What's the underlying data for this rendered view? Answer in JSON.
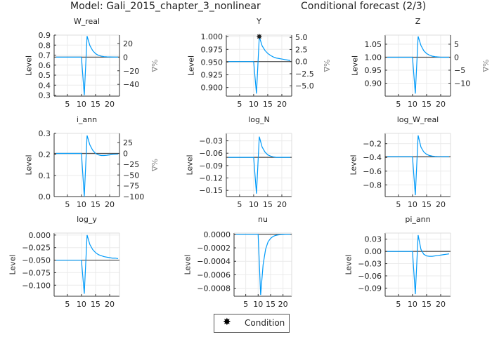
{
  "title_left": "Model: Gali_2015_chapter_3_nonlinear",
  "title_right": "Conditional forecast  (2/3)",
  "legend": {
    "label": "Condition",
    "marker": "star",
    "placement": "bottom-center"
  },
  "colors": {
    "series": "#009af9",
    "steady_state": "#333333",
    "condition": "#000000"
  },
  "chart_data": [
    {
      "type": "line",
      "title": "W_real",
      "ylabel": "Level",
      "y2label": "%Δ",
      "x": [
        1,
        2,
        3,
        4,
        5,
        6,
        7,
        8,
        9,
        10,
        11,
        12,
        13,
        14,
        15,
        16,
        17,
        18,
        19,
        20,
        21,
        22,
        23
      ],
      "xlim": [
        0.3,
        23.5
      ],
      "xticks": [
        5,
        10,
        15,
        20
      ],
      "ylim": [
        0.29,
        0.9
      ],
      "yticks": [
        0.3,
        0.4,
        0.5,
        0.6,
        0.7,
        0.8,
        0.9
      ],
      "ytick_labels": [
        "0.3",
        "0.4",
        "0.5",
        "0.6",
        "0.7",
        "0.8",
        "0.9"
      ],
      "steady_state": 0.68,
      "y2ticks": [
        20,
        0,
        -20,
        -40
      ],
      "y2tick_labels": [
        "20",
        "0",
        "−20",
        "−40"
      ],
      "values": [
        0.68,
        0.68,
        0.68,
        0.68,
        0.68,
        0.68,
        0.68,
        0.68,
        0.68,
        0.68,
        0.3,
        0.89,
        0.795,
        0.745,
        0.715,
        0.698,
        0.69,
        0.685,
        0.683,
        0.682,
        0.681,
        0.68,
        0.68
      ]
    },
    {
      "type": "line",
      "title": "Y",
      "ylabel": "Level",
      "y2label": "%Δ",
      "x": [
        1,
        2,
        3,
        4,
        5,
        6,
        7,
        8,
        9,
        10,
        11,
        12,
        13,
        14,
        15,
        16,
        17,
        18,
        19,
        20,
        21,
        22,
        23
      ],
      "xlim": [
        0.3,
        23.5
      ],
      "xticks": [
        5,
        10,
        15,
        20
      ],
      "ylim": [
        0.883,
        1.003
      ],
      "yticks": [
        0.9,
        0.925,
        0.95,
        0.975,
        1.0
      ],
      "ytick_labels": [
        "0.900",
        "0.925",
        "0.950",
        "0.975",
        "1.000"
      ],
      "steady_state": 0.951,
      "y2ticks": [
        5,
        2.5,
        0,
        -2.5,
        -5
      ],
      "y2tick_labels": [
        "5.0",
        "2.5",
        "0.0",
        "−2.5",
        "−5.0"
      ],
      "values": [
        0.951,
        0.951,
        0.951,
        0.951,
        0.951,
        0.951,
        0.951,
        0.951,
        0.951,
        0.951,
        0.888,
        1.0,
        0.982,
        0.973,
        0.967,
        0.963,
        0.96,
        0.958,
        0.957,
        0.956,
        0.955,
        0.954,
        0.953
      ],
      "conditions": [
        {
          "x": 12,
          "y": 1.0
        }
      ]
    },
    {
      "type": "line",
      "title": "Z",
      "ylabel": "Level",
      "y2label": "%Δ",
      "x": [
        1,
        2,
        3,
        4,
        5,
        6,
        7,
        8,
        9,
        10,
        11,
        12,
        13,
        14,
        15,
        16,
        17,
        18,
        19,
        20,
        21,
        22,
        23
      ],
      "xlim": [
        0.3,
        23.5
      ],
      "xticks": [
        5,
        10,
        15,
        20
      ],
      "ylim": [
        0.85,
        1.085
      ],
      "yticks": [
        0.9,
        0.95,
        1.0,
        1.05
      ],
      "ytick_labels": [
        "0.90",
        "0.95",
        "1.00",
        "1.05"
      ],
      "steady_state": 1.0,
      "y2ticks": [
        5,
        0,
        -5,
        -10
      ],
      "y2tick_labels": [
        "5",
        "0",
        "−5",
        "−10"
      ],
      "values": [
        1,
        1,
        1,
        1,
        1,
        1,
        1,
        1,
        1,
        1,
        0.86,
        1.08,
        1.045,
        1.025,
        1.014,
        1.008,
        1.004,
        1.002,
        1.001,
        1.0,
        1.0,
        1.0,
        1.0
      ]
    },
    {
      "type": "line",
      "title": "i_ann",
      "ylabel": "Level",
      "y2label": "%Δ",
      "x": [
        1,
        2,
        3,
        4,
        5,
        6,
        7,
        8,
        9,
        10,
        11,
        12,
        13,
        14,
        15,
        16,
        17,
        18,
        19,
        20,
        21,
        22,
        23
      ],
      "xlim": [
        0.3,
        23.5
      ],
      "xticks": [
        5,
        10,
        15,
        20
      ],
      "ylim": [
        0,
        0.3
      ],
      "yticks": [
        0,
        0.1,
        0.2,
        0.3
      ],
      "ytick_labels": [
        "0.0",
        "0.1",
        "0.2",
        "0.3"
      ],
      "steady_state": 0.205,
      "y2ticks": [
        25,
        0,
        -25,
        -50,
        -75,
        -100
      ],
      "y2tick_labels": [
        "25",
        "0",
        "−25",
        "−50",
        "−75",
        "−100"
      ],
      "values": [
        0.205,
        0.205,
        0.205,
        0.205,
        0.205,
        0.205,
        0.205,
        0.205,
        0.205,
        0.205,
        0.0,
        0.29,
        0.245,
        0.22,
        0.205,
        0.198,
        0.195,
        0.195,
        0.196,
        0.198,
        0.2,
        0.201,
        0.202
      ]
    },
    {
      "type": "line",
      "title": "log_N",
      "ylabel": "Level",
      "x": [
        1,
        2,
        3,
        4,
        5,
        6,
        7,
        8,
        9,
        10,
        11,
        12,
        13,
        14,
        15,
        16,
        17,
        18,
        19,
        20,
        21,
        22,
        23
      ],
      "xlim": [
        0.3,
        23.5
      ],
      "xticks": [
        5,
        10,
        15,
        20
      ],
      "ylim": [
        -0.165,
        -0.012
      ],
      "yticks": [
        -0.15,
        -0.12,
        -0.09,
        -0.06,
        -0.03
      ],
      "ytick_labels": [
        "−0.15",
        "−0.12",
        "−0.09",
        "−0.06",
        "−0.03"
      ],
      "steady_state": -0.07,
      "values": [
        -0.07,
        -0.07,
        -0.07,
        -0.07,
        -0.07,
        -0.07,
        -0.07,
        -0.07,
        -0.07,
        -0.07,
        -0.158,
        -0.02,
        -0.045,
        -0.057,
        -0.064,
        -0.067,
        -0.069,
        -0.07,
        -0.07,
        -0.07,
        -0.07,
        -0.07,
        -0.07
      ]
    },
    {
      "type": "line",
      "title": "log_W_real",
      "ylabel": "Level",
      "x": [
        1,
        2,
        3,
        4,
        5,
        6,
        7,
        8,
        9,
        10,
        11,
        12,
        13,
        14,
        15,
        16,
        17,
        18,
        19,
        20,
        21,
        22,
        23
      ],
      "xlim": [
        0.3,
        23.5
      ],
      "xticks": [
        5,
        10,
        15,
        20
      ],
      "ylim": [
        -0.97,
        -0.05
      ],
      "yticks": [
        -0.8,
        -0.6,
        -0.4,
        -0.2
      ],
      "ytick_labels": [
        "−0.8",
        "−0.6",
        "−0.4",
        "−0.2"
      ],
      "steady_state": -0.39,
      "values": [
        -0.39,
        -0.39,
        -0.39,
        -0.39,
        -0.39,
        -0.39,
        -0.39,
        -0.39,
        -0.39,
        -0.39,
        -0.95,
        -0.08,
        -0.25,
        -0.32,
        -0.355,
        -0.372,
        -0.381,
        -0.386,
        -0.388,
        -0.389,
        -0.39,
        -0.39,
        -0.39
      ]
    },
    {
      "type": "line",
      "title": "log_y",
      "ylabel": "Level",
      "x": [
        1,
        2,
        3,
        4,
        5,
        6,
        7,
        8,
        9,
        10,
        11,
        12,
        13,
        14,
        15,
        16,
        17,
        18,
        19,
        20,
        21,
        22,
        23
      ],
      "xlim": [
        0.3,
        23.5
      ],
      "xticks": [
        5,
        10,
        15,
        20
      ],
      "ylim": [
        -0.122,
        0.004
      ],
      "yticks": [
        -0.1,
        -0.075,
        -0.05,
        -0.025,
        0
      ],
      "ytick_labels": [
        "−0.100",
        "−0.075",
        "−0.050",
        "−0.025",
        "0.000"
      ],
      "steady_state": -0.05,
      "values": [
        -0.05,
        -0.05,
        -0.05,
        -0.05,
        -0.05,
        -0.05,
        -0.05,
        -0.05,
        -0.05,
        -0.05,
        -0.117,
        0.0,
        -0.019,
        -0.029,
        -0.035,
        -0.039,
        -0.041,
        -0.043,
        -0.044,
        -0.045,
        -0.046,
        -0.046,
        -0.047
      ]
    },
    {
      "type": "line",
      "title": "nu",
      "ylabel": "Level",
      "x": [
        1,
        2,
        3,
        4,
        5,
        6,
        7,
        8,
        9,
        10,
        11,
        12,
        13,
        14,
        15,
        16,
        17,
        18,
        19,
        20,
        21,
        22,
        23
      ],
      "xlim": [
        0.3,
        23.5
      ],
      "xticks": [
        5,
        10,
        15,
        20
      ],
      "ylim": [
        -0.00092,
        2e-05
      ],
      "yticks": [
        -0.0008,
        -0.0006,
        -0.0004,
        -0.0002,
        0
      ],
      "ytick_labels": [
        "−0.0008",
        "−0.0006",
        "−0.0004",
        "−0.0002",
        "0.0000"
      ],
      "steady_state": 0,
      "values": [
        0,
        0,
        0,
        0,
        0,
        0,
        0,
        0,
        0,
        0,
        -0.0009,
        -0.00045,
        -0.00022,
        -0.00011,
        -6e-05,
        -3e-05,
        -1.5e-05,
        -8e-06,
        -4e-06,
        -2e-06,
        0,
        0,
        0
      ]
    },
    {
      "type": "line",
      "title": "pi_ann",
      "ylabel": "Level",
      "x": [
        1,
        2,
        3,
        4,
        5,
        6,
        7,
        8,
        9,
        10,
        11,
        12,
        13,
        14,
        15,
        16,
        17,
        18,
        19,
        20,
        21,
        22,
        23
      ],
      "xlim": [
        0.3,
        23.5
      ],
      "xticks": [
        5,
        10,
        15,
        20
      ],
      "ylim": [
        -0.11,
        0.045
      ],
      "yticks": [
        -0.09,
        -0.06,
        -0.03,
        0,
        0.03
      ],
      "ytick_labels": [
        "−0.09",
        "−0.06",
        "−0.03",
        "0.00",
        "0.03"
      ],
      "steady_state": 0,
      "values": [
        0,
        0,
        0,
        0,
        0,
        0,
        0,
        0,
        0,
        0,
        -0.105,
        0.04,
        0.005,
        -0.007,
        -0.011,
        -0.012,
        -0.012,
        -0.011,
        -0.01,
        -0.009,
        -0.008,
        -0.007,
        -0.006
      ]
    }
  ]
}
